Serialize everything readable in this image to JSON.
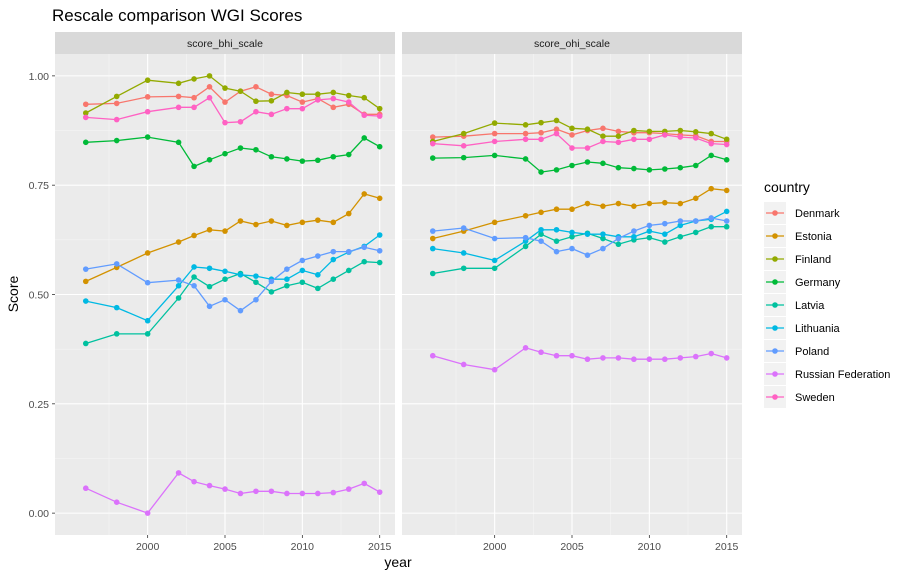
{
  "chart_data": {
    "type": "line",
    "title": "Rescale comparison WGI Scores",
    "xlabel": "year",
    "ylabel": "Score",
    "xlim": [
      1995,
      2015
    ],
    "ylim": [
      0,
      1
    ],
    "xticks": [
      2000,
      2005,
      2010,
      2015
    ],
    "yticks": [
      0,
      0.25,
      0.5,
      0.75,
      1.0
    ],
    "ytick_labels": [
      "0.00",
      "0.25",
      "0.50",
      "0.75",
      "1.00"
    ],
    "x": [
      1996,
      1998,
      2000,
      2002,
      2003,
      2004,
      2005,
      2006,
      2007,
      2008,
      2009,
      2010,
      2011,
      2012,
      2013,
      2014,
      2015
    ],
    "grid": true,
    "legend": {
      "title": "country",
      "position": "right"
    },
    "panels": [
      {
        "label": "score_bhi_scale",
        "series": [
          {
            "name": "Denmark",
            "color": "#F8766D",
            "values": [
              0.935,
              0.937,
              0.952,
              0.953,
              0.95,
              0.975,
              0.94,
              0.965,
              0.975,
              0.958,
              0.955,
              0.94,
              0.948,
              0.928,
              0.935,
              0.912,
              0.912
            ]
          },
          {
            "name": "Estonia",
            "color": "#D39200",
            "values": [
              0.53,
              0.562,
              0.595,
              0.62,
              0.635,
              0.648,
              0.645,
              0.668,
              0.66,
              0.668,
              0.658,
              0.665,
              0.67,
              0.665,
              0.685,
              0.73,
              0.72
            ]
          },
          {
            "name": "Finland",
            "color": "#93AA00",
            "values": [
              0.915,
              0.953,
              0.99,
              0.983,
              0.993,
              1.0,
              0.972,
              0.965,
              0.942,
              0.943,
              0.962,
              0.958,
              0.958,
              0.962,
              0.955,
              0.95,
              0.925
            ]
          },
          {
            "name": "Germany",
            "color": "#00BA38",
            "values": [
              0.848,
              0.852,
              0.86,
              0.848,
              0.793,
              0.808,
              0.822,
              0.835,
              0.831,
              0.815,
              0.81,
              0.805,
              0.807,
              0.815,
              0.82,
              0.858,
              0.838
            ]
          },
          {
            "name": "Latvia",
            "color": "#00C19F",
            "values": [
              0.388,
              0.41,
              0.41,
              0.492,
              0.54,
              0.518,
              0.535,
              0.548,
              0.528,
              0.506,
              0.52,
              0.528,
              0.514,
              0.535,
              0.555,
              0.575,
              0.573
            ]
          },
          {
            "name": "Lithuania",
            "color": "#00B9E3",
            "values": [
              0.485,
              0.47,
              0.44,
              0.52,
              0.563,
              0.56,
              0.553,
              0.545,
              0.542,
              0.535,
              0.535,
              0.555,
              0.545,
              0.58,
              0.597,
              0.61,
              0.636
            ]
          },
          {
            "name": "Poland",
            "color": "#619CFF",
            "values": [
              0.558,
              0.57,
              0.527,
              0.533,
              0.52,
              0.473,
              0.488,
              0.463,
              0.488,
              0.53,
              0.558,
              0.578,
              0.588,
              0.598,
              0.598,
              0.608,
              0.6
            ]
          },
          {
            "name": "Russian Federation",
            "color": "#DB72FB",
            "values": [
              0.057,
              0.025,
              0.0,
              0.092,
              0.072,
              0.063,
              0.055,
              0.045,
              0.05,
              0.05,
              0.045,
              0.045,
              0.045,
              0.047,
              0.055,
              0.068,
              0.048
            ]
          },
          {
            "name": "Sweden",
            "color": "#FF61C3",
            "values": [
              0.905,
              0.9,
              0.918,
              0.928,
              0.928,
              0.95,
              0.893,
              0.895,
              0.918,
              0.912,
              0.925,
              0.925,
              0.945,
              0.948,
              0.94,
              0.91,
              0.908
            ]
          }
        ]
      },
      {
        "label": "score_ohi_scale",
        "series": [
          {
            "name": "Denmark",
            "color": "#F8766D",
            "values": [
              0.86,
              0.862,
              0.868,
              0.868,
              0.87,
              0.878,
              0.865,
              0.875,
              0.88,
              0.873,
              0.87,
              0.87,
              0.868,
              0.865,
              0.863,
              0.85,
              0.85
            ]
          },
          {
            "name": "Estonia",
            "color": "#D39200",
            "values": [
              0.628,
              0.645,
              0.665,
              0.68,
              0.688,
              0.695,
              0.695,
              0.708,
              0.702,
              0.708,
              0.702,
              0.708,
              0.71,
              0.708,
              0.72,
              0.742,
              0.738
            ]
          },
          {
            "name": "Finland",
            "color": "#93AA00",
            "values": [
              0.85,
              0.868,
              0.892,
              0.888,
              0.893,
              0.898,
              0.88,
              0.878,
              0.862,
              0.862,
              0.875,
              0.873,
              0.873,
              0.875,
              0.872,
              0.868,
              0.855
            ]
          },
          {
            "name": "Germany",
            "color": "#00BA38",
            "values": [
              0.812,
              0.813,
              0.818,
              0.81,
              0.78,
              0.785,
              0.795,
              0.803,
              0.8,
              0.79,
              0.788,
              0.785,
              0.787,
              0.79,
              0.795,
              0.818,
              0.808
            ]
          },
          {
            "name": "Latvia",
            "color": "#00C19F",
            "values": [
              0.548,
              0.56,
              0.56,
              0.61,
              0.638,
              0.622,
              0.632,
              0.64,
              0.628,
              0.615,
              0.625,
              0.63,
              0.62,
              0.632,
              0.642,
              0.655,
              0.655
            ]
          },
          {
            "name": "Lithuania",
            "color": "#00B9E3",
            "values": [
              0.605,
              0.595,
              0.578,
              0.622,
              0.648,
              0.648,
              0.642,
              0.638,
              0.638,
              0.632,
              0.632,
              0.645,
              0.638,
              0.658,
              0.668,
              0.672,
              0.69
            ]
          },
          {
            "name": "Poland",
            "color": "#619CFF",
            "values": [
              0.645,
              0.652,
              0.628,
              0.63,
              0.622,
              0.598,
              0.605,
              0.59,
              0.605,
              0.628,
              0.645,
              0.658,
              0.662,
              0.668,
              0.668,
              0.675,
              0.668
            ]
          },
          {
            "name": "Russian Federation",
            "color": "#DB72FB",
            "values": [
              0.36,
              0.34,
              0.328,
              0.378,
              0.368,
              0.36,
              0.36,
              0.352,
              0.355,
              0.355,
              0.352,
              0.352,
              0.352,
              0.355,
              0.358,
              0.365,
              0.355
            ]
          },
          {
            "name": "Sweden",
            "color": "#FF61C3",
            "values": [
              0.845,
              0.84,
              0.85,
              0.855,
              0.855,
              0.868,
              0.835,
              0.835,
              0.85,
              0.848,
              0.855,
              0.855,
              0.865,
              0.86,
              0.858,
              0.845,
              0.843
            ]
          }
        ]
      }
    ]
  }
}
